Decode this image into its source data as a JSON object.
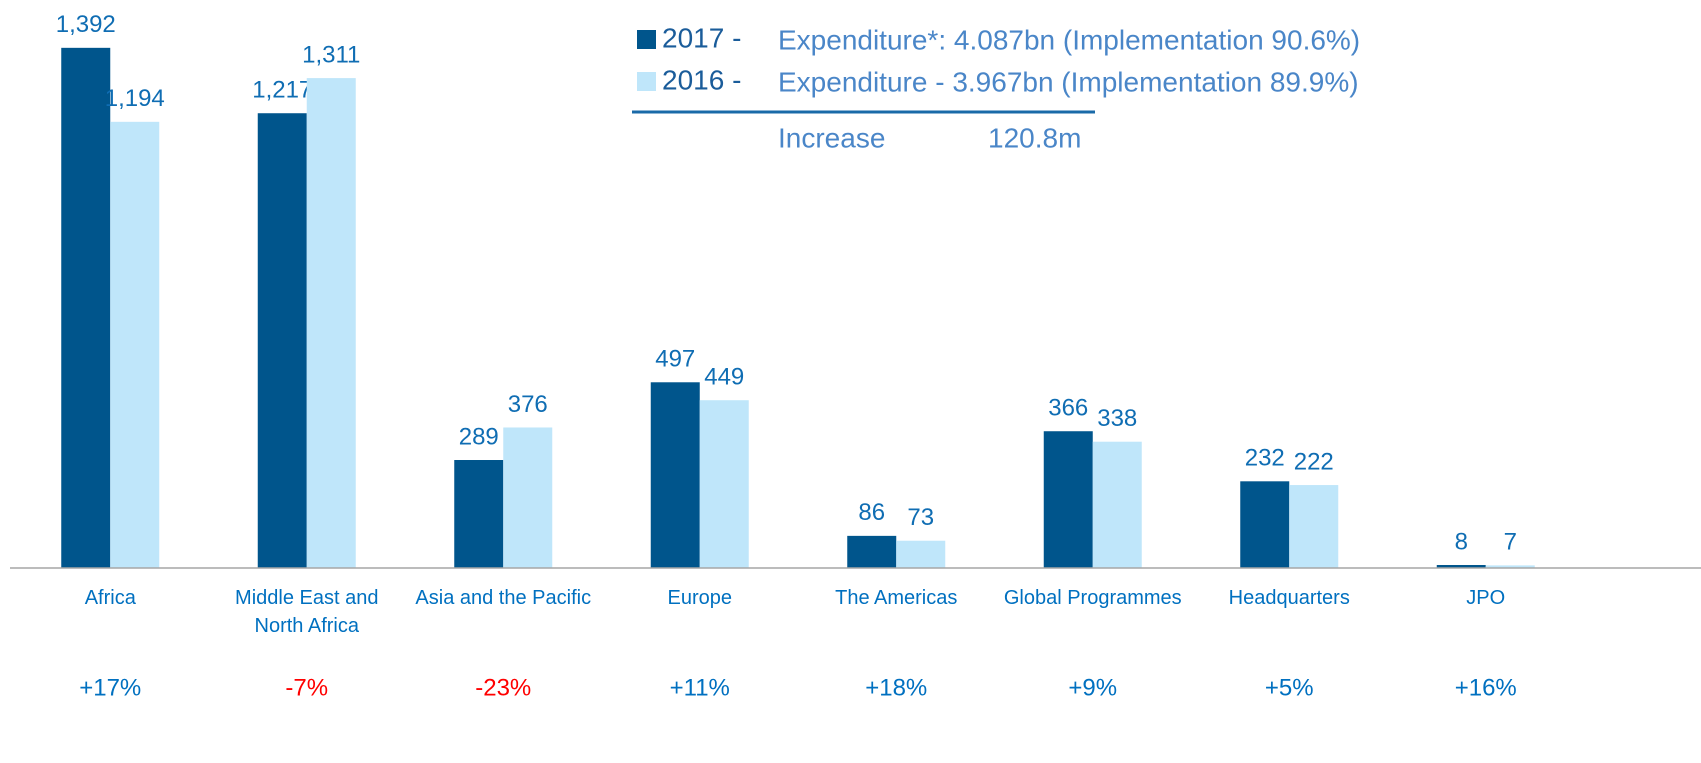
{
  "chart_data": {
    "type": "bar",
    "categories": [
      "Africa",
      "Middle East and North Africa",
      "Asia and the Pacific",
      "Europe",
      "The Americas",
      "Global Programmes",
      "Headquarters",
      "JPO"
    ],
    "series": [
      {
        "name": "2017 -",
        "color": "#00558c",
        "values": [
          1392,
          1217,
          289,
          497,
          86,
          366,
          232,
          8
        ],
        "value_labels": [
          "1,392",
          "1,217",
          "289",
          "497",
          "86",
          "366",
          "232",
          "8"
        ]
      },
      {
        "name": "2016 -",
        "color": "#bfe6fa",
        "values": [
          1194,
          1311,
          376,
          449,
          73,
          338,
          222,
          7
        ],
        "value_labels": [
          "1,194",
          "1,311",
          "376",
          "449",
          "73",
          "338",
          "222",
          "7"
        ]
      }
    ],
    "legend_notes": [
      "Expenditure*: 4.087bn (Implementation 90.6%)",
      "Expenditure - 3.967bn (Implementation 89.9%)"
    ],
    "increase_label": "Increase",
    "increase_value": "120.8m",
    "changes": [
      "+17%",
      "-7%",
      "-23%",
      "+11%",
      "+18%",
      "+9%",
      "+5%",
      "+16%"
    ],
    "change_colors": [
      "#0070c0",
      "#ff0000",
      "#ff0000",
      "#0070c0",
      "#0070c0",
      "#0070c0",
      "#0070c0",
      "#0070c0"
    ],
    "ylim": [
      0,
      1520
    ]
  }
}
